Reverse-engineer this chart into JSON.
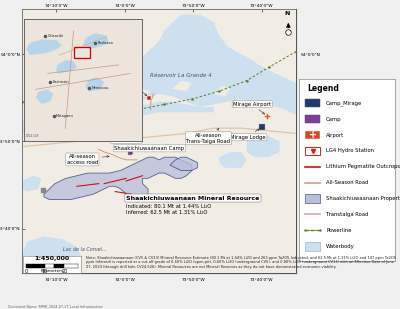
{
  "outer_bg": "#f0f0f0",
  "map_border": "#888888",
  "water_color": "#cce0f0",
  "land_color": "#f2ede4",
  "land_color2": "#e8dfd0",
  "mineral_fill": "#b8bedd",
  "mineral_edge": "#2a3870",
  "note_text": "Note: Shaakichiuwaanaan (CV5 & CV13) Mineral Resource Estimate (80.1 Mt at 1.44% Li2O and 263 ppm Ta2O5 Indicated, and 62.5 Mt at 1.31% Li2O and 147 ppm Ta2O5 ppm Inferred) is reported at a cut-off grade of 0.40% Li2O (open-pit), 0.60% Li2O (underground CV5), and 0.80% Li2O (underground CV13) with an Effective Date of June 27, 2024 (through drill hole CV24-526). Mineral Resources are not Mineral Reserves as they do not have demonstrated economic viability.",
  "document_name": "Document Name: MMR_2024-07-17_Local Infrastructure",
  "scale_text": "1:450,000",
  "coord_top": [
    "74°10'0\"W",
    "74°0'0\"W",
    "73°50'0\"W",
    "73°40'0\"W"
  ],
  "coord_bottom": [
    "74°10'0\"W",
    "74°0'0\"W",
    "73°50'0\"W",
    "73°40'0\"W"
  ],
  "coord_left": [
    "54°0'0\"N",
    "53°50'0\"N",
    "53°40'0\"N"
  ],
  "coord_right": [
    "54°0'0\"N",
    "53°50'0\"N",
    "53°40'0\"N"
  ],
  "legend_items": [
    {
      "label": "Camp_Mirage",
      "type": "square",
      "color": "#1f3c6e"
    },
    {
      "label": "Camp",
      "type": "square",
      "color": "#7b3f9e"
    },
    {
      "label": "Airport",
      "type": "cross_orange",
      "color": "#d44820"
    },
    {
      "label": "LG4 Hydro Station",
      "type": "hydro_icon",
      "color": "#cc2222"
    },
    {
      "label": "Lithium Pegmatite Outcrops",
      "type": "solid_line",
      "color": "#cc1111"
    },
    {
      "label": "All-Season Road",
      "type": "solid_line",
      "color": "#d4a080"
    },
    {
      "label": "Shaakichiuwaanaan Property",
      "type": "fill_rect",
      "color": "#b8bedd",
      "edge": "#2a3870"
    },
    {
      "label": "Transtalga Road",
      "type": "solid_line",
      "color": "#c8b0b0"
    },
    {
      "label": "Powerline",
      "type": "dotdash_line",
      "color": "#5a8020"
    },
    {
      "label": "Waterbody",
      "type": "fill_rect",
      "color": "#cce0f0",
      "edge": "#88aabb"
    }
  ]
}
